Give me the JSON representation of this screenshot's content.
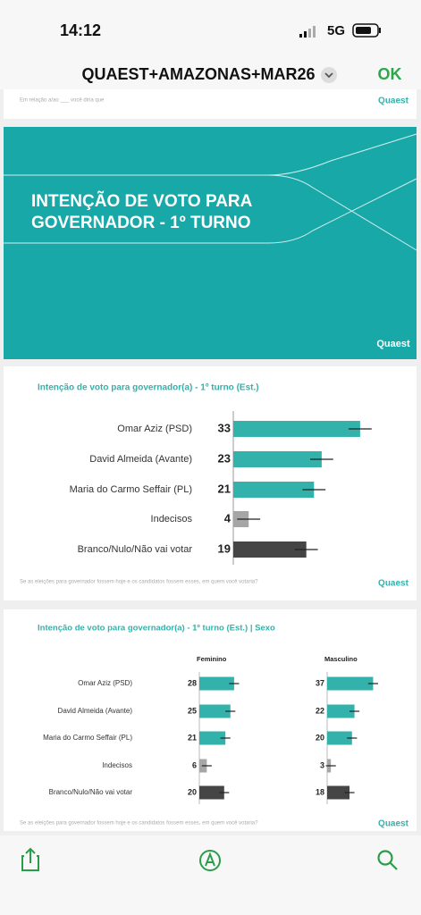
{
  "status_bar": {
    "time": "14:12",
    "network": "5G"
  },
  "header": {
    "title": "QUAEST+AMAZONAS+MAR26",
    "done": "OK"
  },
  "slides": [
    {
      "caption": "Em relação a/ao ___ você diria que",
      "logo": "Quaest"
    },
    {
      "title_lines": [
        "INTENÇÃO DE VOTO PARA",
        "GOVERNADOR - 1º TURNO"
      ],
      "logo": "Quaest"
    },
    {
      "chart_data": {
        "type": "bar",
        "orientation": "horizontal",
        "title": "Intenção de voto para governador(a) - 1º turno (Est.)",
        "categories": [
          "Omar Aziz (PSD)",
          "David Almeida (Avante)",
          "Maria do Carmo Seffair (PL)",
          "Indecisos",
          "Branco/Nulo/Não vai votar"
        ],
        "values": [
          33,
          23,
          21,
          4,
          19
        ],
        "error": [
          3,
          3,
          3,
          3,
          3
        ],
        "colors": [
          "#33b2ab",
          "#33b2ab",
          "#33b2ab",
          "#a6a6a6",
          "#454545"
        ]
      },
      "footnote": "Se as eleições para governador fossem hoje e os candidatos fossem esses, em quem você votaria?",
      "logo": "Quaest"
    },
    {
      "chart_data": {
        "type": "bar",
        "orientation": "horizontal",
        "title": "Intenção de voto para governador(a) - 1º turno (Est.) | Sexo",
        "categories": [
          "Omar Aziz (PSD)",
          "David Almeida (Avante)",
          "Maria do Carmo Seffair (PL)",
          "Indecisos",
          "Branco/Nulo/Não vai votar"
        ],
        "series": [
          {
            "name": "Feminino",
            "values": [
              28,
              25,
              21,
              6,
              20
            ],
            "error": [
              4,
              4,
              4,
              4,
              4
            ]
          },
          {
            "name": "Masculino",
            "values": [
              37,
              22,
              20,
              3,
              18
            ],
            "error": [
              4,
              4,
              4,
              4,
              4
            ]
          }
        ],
        "colors": [
          "#33b2ab",
          "#33b2ab",
          "#33b2ab",
          "#a6a6a6",
          "#454545"
        ]
      },
      "footnote": "Se as eleições para governador fossem hoje e os candidatos fossem esses, em quem você votaria?",
      "logo": "Quaest"
    }
  ]
}
